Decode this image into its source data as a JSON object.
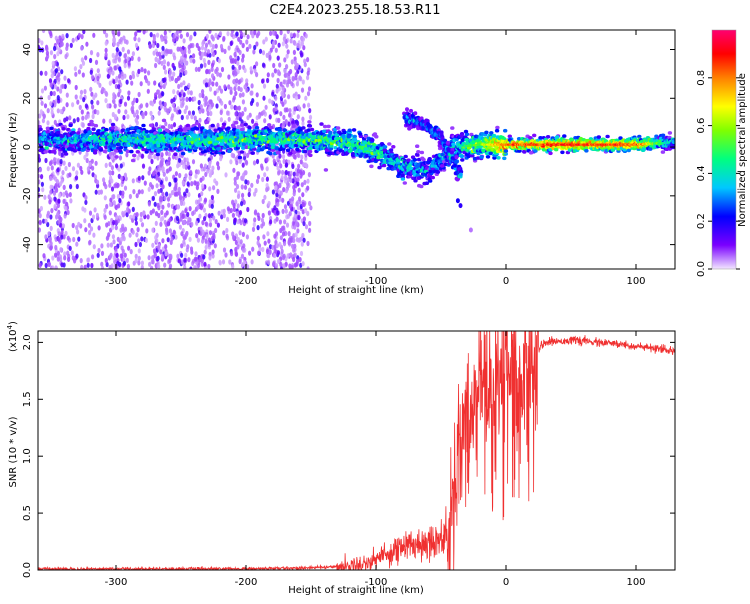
{
  "title": "C2E4.2023.255.18.53.R11",
  "chart_data": [
    {
      "type": "heatmap",
      "xlabel": "Height of straight line (km)",
      "ylabel": "Frequency (Hz)",
      "xlim": [
        -360,
        130
      ],
      "ylim": [
        -50,
        48
      ],
      "xticks": [
        -300,
        -200,
        -100,
        0,
        100
      ],
      "yticks": [
        -40,
        -20,
        0,
        20,
        40
      ],
      "grid": false,
      "colorbar": {
        "label": "Normalized spectral amplitude",
        "range": [
          0.0,
          1.0
        ],
        "ticks": [
          "0.0",
          "0.2",
          "0.4",
          "0.6",
          "0.8"
        ],
        "tick_values": [
          0.0,
          0.2,
          0.4,
          0.6,
          0.8
        ],
        "colormap": [
          "#e9d6ff",
          "#7a00ff",
          "#0000ff",
          "#00c8ff",
          "#00ff7a",
          "#7aff00",
          "#ffff00",
          "#ff7a00",
          "#ff0000",
          "#ff006e"
        ]
      },
      "main_ridge": [
        {
          "x": -360,
          "freq": 3,
          "amp": 0.3
        },
        {
          "x": -300,
          "freq": 3,
          "amp": 0.4
        },
        {
          "x": -200,
          "freq": 3,
          "amp": 0.45
        },
        {
          "x": -150,
          "freq": 3,
          "amp": 0.45
        },
        {
          "x": -120,
          "freq": 2,
          "amp": 0.45
        },
        {
          "x": -100,
          "freq": -2,
          "amp": 0.45
        },
        {
          "x": -80,
          "freq": -8,
          "amp": 0.35
        },
        {
          "x": -60,
          "freq": -10,
          "amp": 0.3
        },
        {
          "x": -40,
          "freq": 0,
          "amp": 0.35
        },
        {
          "x": -20,
          "freq": 1,
          "amp": 0.55
        },
        {
          "x": 0,
          "freq": 1,
          "amp": 0.8
        },
        {
          "x": 50,
          "freq": 1,
          "amp": 0.85
        },
        {
          "x": 100,
          "freq": 1,
          "amp": 0.8
        },
        {
          "x": 130,
          "freq": 2,
          "amp": 0.3
        }
      ],
      "side_branch": [
        {
          "x": -78,
          "freq": 12,
          "amp": 0.3
        },
        {
          "x": -65,
          "freq": 10,
          "amp": 0.3
        },
        {
          "x": -50,
          "freq": 4,
          "amp": 0.3
        },
        {
          "x": -35,
          "freq": -12,
          "amp": 0.35
        }
      ]
    },
    {
      "type": "line",
      "xlabel": "Height of straight line (km)",
      "ylabel": "SNR (10 * v/v)",
      "yscale_label": "(x10",
      "yscale_exp": "4",
      "yscale_close": ")",
      "xlim": [
        -360,
        130
      ],
      "ylim": [
        0.0,
        2.1
      ],
      "xticks": [
        -300,
        -200,
        -100,
        0,
        100
      ],
      "yticks": [
        "0.0",
        "0.5",
        "1.0",
        "1.5",
        "2.0"
      ],
      "ytick_values": [
        0.0,
        0.5,
        1.0,
        1.5,
        2.0
      ],
      "color": "#f03030",
      "grid": false,
      "x": [
        -360,
        -300,
        -250,
        -200,
        -150,
        -130,
        -110,
        -100,
        -80,
        -60,
        -45,
        -38,
        -32,
        -25,
        -20,
        -10,
        0,
        10,
        20,
        25,
        30,
        50,
        70,
        90,
        110,
        130
      ],
      "y": [
        0.01,
        0.01,
        0.01,
        0.01,
        0.02,
        0.03,
        0.05,
        0.1,
        0.2,
        0.25,
        0.3,
        0.9,
        1.3,
        1.5,
        1.7,
        1.6,
        1.75,
        1.85,
        1.9,
        1.95,
        2.0,
        2.02,
        2.0,
        1.98,
        1.95,
        1.92
      ]
    }
  ]
}
